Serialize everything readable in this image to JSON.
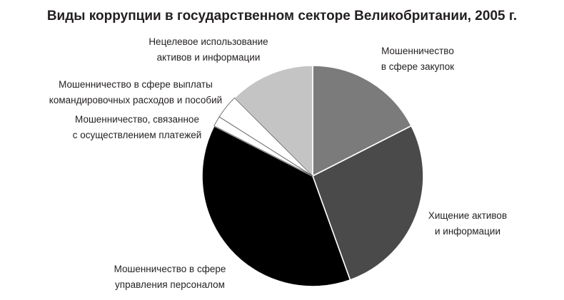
{
  "chart_data": {
    "type": "pie",
    "title": "Виды коррупции в государственном секторе Великобритании, 2005 г.",
    "slices": [
      {
        "label_lines": [
          "Мошенничество",
          "в сфере закупок"
        ],
        "value": 17.5,
        "color": "#7b7b7b"
      },
      {
        "label_lines": [
          "Хищение активов",
          "и информации"
        ],
        "value": 27,
        "color": "#4a4a4a"
      },
      {
        "label_lines": [
          "Мошенничество в сфере",
          "управления персоналом"
        ],
        "value": 38,
        "color": "#000000"
      },
      {
        "label_lines": [
          "Мошенничество, связанное",
          "с осуществлением платежей"
        ],
        "value": 1.5,
        "color": "#ffffff"
      },
      {
        "label_lines": [
          "Мошенничество в сфере выплаты",
          "командировочных расходов и пособий"
        ],
        "value": 3.5,
        "color": "#ffffff"
      },
      {
        "label_lines": [
          "Нецелевое использование",
          "активов и информации"
        ],
        "value": 12.5,
        "color": "#c4c4c4"
      }
    ],
    "legend": "none",
    "start_angle": "12 o'clock",
    "direction": "clockwise"
  }
}
